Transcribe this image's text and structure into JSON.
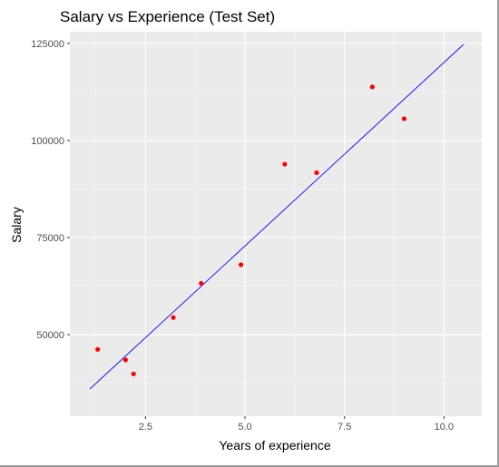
{
  "colors": {
    "panel": "#ebebeb",
    "grid_major": "#ffffff",
    "grid_minor": "#f5f5f5",
    "tick": "#333333",
    "point": "#ff0000",
    "line": "#0000ff"
  },
  "chart_data": {
    "type": "scatter",
    "title": "Salary vs Experience (Test Set)",
    "xlabel": "Years of experience",
    "ylabel": "Salary",
    "xlim": [
      0.6,
      10.95
    ],
    "ylim": [
      29000,
      128000
    ],
    "x_ticks": [
      2.5,
      5.0,
      7.5,
      10.0
    ],
    "x_tick_labels": [
      "2.5",
      "5.0",
      "7.5",
      "10.0"
    ],
    "y_ticks": [
      50000,
      75000,
      100000,
      125000
    ],
    "y_tick_labels": [
      "50000",
      "75000",
      "100000",
      "125000"
    ],
    "grid": true,
    "points": [
      {
        "x": 1.3,
        "y": 46200
      },
      {
        "x": 2.0,
        "y": 43500
      },
      {
        "x": 2.2,
        "y": 39900
      },
      {
        "x": 3.2,
        "y": 54400
      },
      {
        "x": 3.9,
        "y": 63200
      },
      {
        "x": 4.9,
        "y": 68000
      },
      {
        "x": 6.0,
        "y": 93900
      },
      {
        "x": 6.8,
        "y": 91700
      },
      {
        "x": 8.2,
        "y": 113800
      },
      {
        "x": 9.0,
        "y": 105600
      }
    ],
    "fit_line": [
      {
        "x": 1.1,
        "y": 36000
      },
      {
        "x": 10.5,
        "y": 124800
      }
    ]
  }
}
